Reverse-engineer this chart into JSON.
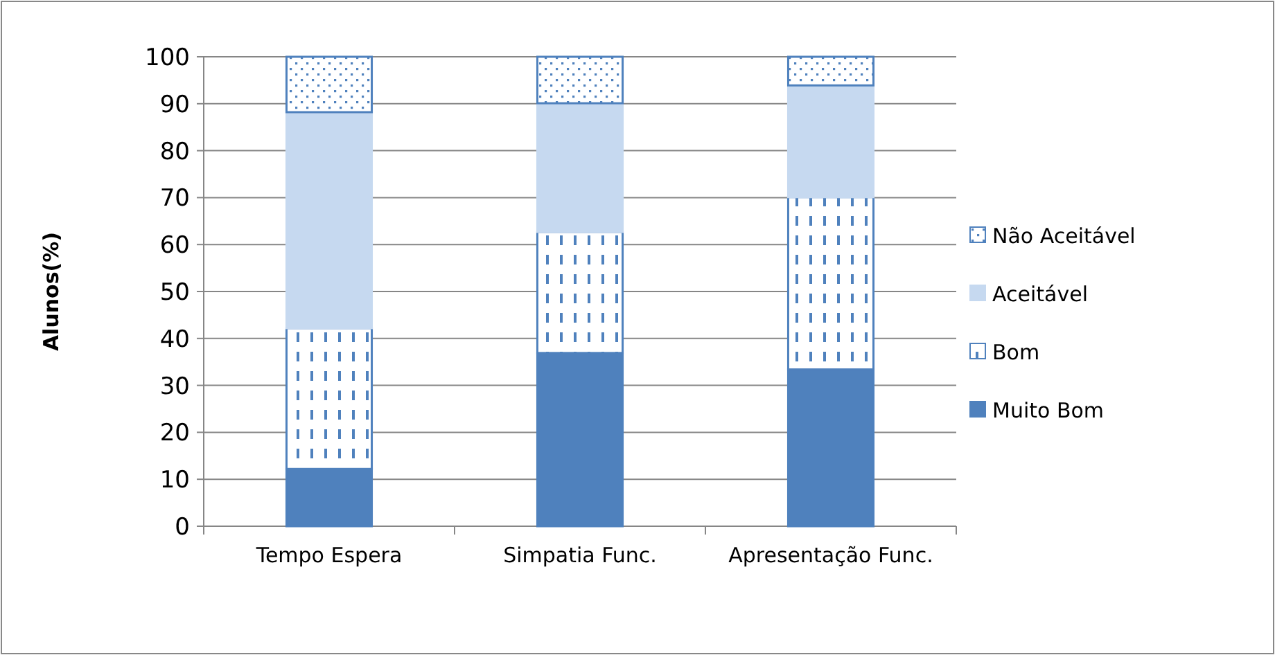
{
  "chart_data": {
    "type": "bar",
    "stacked": true,
    "ylabel": "Alunos(%)",
    "categories": [
      "Tempo Espera",
      "Simpatia Func.",
      "Apresentação Func."
    ],
    "series": [
      {
        "name": "Muito Bom",
        "color": "#4f81bd",
        "values": [
          12.2,
          36.9,
          33.4
        ]
      },
      {
        "name": "Bom",
        "color": "#4f81bd",
        "values": [
          30.0,
          25.8,
          36.7
        ]
      },
      {
        "name": "Aceitável",
        "color": "#c6d9f0",
        "values": [
          46.0,
          27.4,
          23.8
        ]
      },
      {
        "name": "Não Aceitável",
        "color": "#4f81bd",
        "values": [
          11.8,
          9.9,
          6.1
        ]
      }
    ],
    "ylim": [
      0,
      100
    ],
    "yticks": [
      0,
      10,
      20,
      30,
      40,
      50,
      60,
      70,
      80,
      90,
      100
    ],
    "grid": "y",
    "legend": "right"
  }
}
